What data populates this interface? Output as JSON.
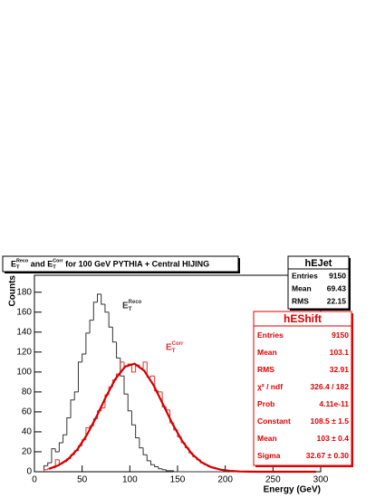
{
  "chart_data": {
    "type": "histogram",
    "title_parts": [
      {
        "base": "E",
        "sub": "T",
        "sup": "Reco"
      },
      {
        "text": " and "
      },
      {
        "base": "E",
        "sub": "T",
        "sup": "Corr"
      },
      {
        "text": " for 100 GeV PYTHIA + Central HIJING"
      }
    ],
    "x_label": "Energy (GeV)",
    "y_label": "Counts",
    "xlim": [
      0,
      300
    ],
    "ylim": [
      0,
      197
    ],
    "xticks": [
      0,
      50,
      100,
      150,
      200,
      250,
      300
    ],
    "yticks": [
      0,
      20,
      40,
      60,
      80,
      100,
      120,
      140,
      160,
      180
    ],
    "bins": [
      10,
      14,
      18,
      22,
      26,
      30,
      34,
      38,
      42,
      46,
      50,
      54,
      58,
      62,
      66,
      70,
      74,
      78,
      82,
      86,
      90,
      94,
      98,
      102,
      106,
      110,
      114,
      118,
      122,
      126,
      130,
      134,
      138,
      142,
      146,
      150,
      154,
      158,
      162,
      166,
      170,
      174,
      178,
      182,
      186,
      190,
      194,
      198,
      202,
      206,
      210,
      214,
      218,
      222,
      226,
      230,
      234,
      238,
      242,
      246,
      250
    ],
    "series": [
      {
        "label": {
          "base": "E",
          "sub": "T",
          "sup": "Reco"
        },
        "color": "#333333",
        "values": [
          6,
          9,
          23,
          20,
          29,
          37,
          54,
          72,
          80,
          110,
          118,
          139,
          152,
          170,
          178,
          168,
          160,
          145,
          130,
          114,
          96,
          78,
          61,
          47,
          34,
          24,
          17,
          11,
          7,
          5,
          3,
          2,
          1,
          1,
          0,
          0,
          0,
          0,
          0,
          0,
          0,
          0,
          0,
          0,
          0,
          0,
          0,
          0,
          0,
          0,
          0,
          0,
          0,
          0,
          0,
          0,
          0,
          0,
          0,
          0
        ]
      },
      {
        "label": {
          "base": "E",
          "sub": "T",
          "sup": "Corr"
        },
        "color": "#e03030",
        "values": [
          2,
          3,
          4,
          12,
          8,
          10,
          13,
          17,
          21,
          26,
          32,
          44,
          46,
          53,
          61,
          64,
          77,
          85,
          92,
          98,
          110,
          106,
          108,
          100,
          107,
          104,
          110,
          95,
          96,
          81,
          80,
          65,
          62,
          49,
          42,
          35,
          29,
          24,
          19,
          15,
          12,
          9,
          7,
          5,
          4,
          3,
          2,
          1,
          1,
          1,
          0,
          0,
          0,
          0,
          0,
          0,
          0,
          0,
          0,
          0
        ]
      }
    ],
    "fit": {
      "color": "#d00000",
      "x": [
        15,
        25,
        35,
        45,
        55,
        65,
        75,
        85,
        95,
        105,
        115,
        125,
        135,
        145,
        155,
        165,
        175,
        185,
        195,
        205,
        215,
        225,
        235,
        245,
        255,
        265,
        275,
        285,
        295
      ],
      "values": [
        2.9,
        6.3,
        12.4,
        22.4,
        36.9,
        55.2,
        75.2,
        93.2,
        105.3,
        108.3,
        101.4,
        86.5,
        67.2,
        47.5,
        30.6,
        17.9,
        9.6,
        4.7,
        2.1,
        0.8,
        0.3,
        0.1,
        0,
        0,
        0,
        0,
        0,
        0,
        0
      ]
    },
    "stats": [
      {
        "title": "hEJet",
        "color": "#000000",
        "rows": [
          [
            "Entries",
            "9150"
          ],
          [
            "Mean",
            "69.43"
          ],
          [
            "RMS",
            "22.15"
          ]
        ]
      },
      {
        "title": "hEShift",
        "color": "#e00000",
        "rows": [
          [
            "Entries",
            "9150"
          ],
          [
            "Mean",
            "103.1"
          ],
          [
            "RMS",
            "32.91"
          ],
          [
            "χ² / ndf",
            "326.4 / 182"
          ],
          [
            "Prob",
            "4.11e-11"
          ],
          [
            "Constant",
            "108.5 ± 1.5"
          ],
          [
            "Mean",
            "103 ± 0.4"
          ],
          [
            "Sigma",
            "32.67 ± 0.30"
          ]
        ]
      }
    ]
  }
}
